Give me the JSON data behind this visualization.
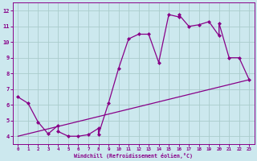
{
  "title": "",
  "xlabel": "Windchill (Refroidissement éolien,°C)",
  "xlim": [
    -0.5,
    23.5
  ],
  "ylim": [
    3.5,
    12.5
  ],
  "xticks": [
    0,
    1,
    2,
    3,
    4,
    5,
    6,
    7,
    8,
    9,
    10,
    11,
    12,
    13,
    14,
    15,
    16,
    17,
    18,
    19,
    20,
    21,
    22,
    23
  ],
  "yticks": [
    4,
    5,
    6,
    7,
    8,
    9,
    10,
    11,
    12
  ],
  "background_color": "#cce8ee",
  "line_color": "#880088",
  "grid_color": "#aacccc",
  "curve_x": [
    0,
    1,
    2,
    3,
    4,
    4,
    5,
    6,
    7,
    8,
    8,
    9,
    10,
    11,
    12,
    13,
    14,
    15,
    16,
    16,
    17,
    18,
    19,
    20,
    20,
    21,
    22,
    23
  ],
  "curve_y": [
    6.5,
    6.1,
    4.9,
    4.15,
    4.7,
    4.3,
    4.0,
    4.0,
    4.1,
    4.5,
    4.1,
    6.1,
    8.3,
    10.2,
    10.5,
    10.5,
    8.7,
    11.75,
    11.6,
    11.75,
    11.0,
    11.1,
    11.3,
    10.4,
    11.2,
    9.0,
    9.0,
    7.6
  ],
  "line_x": [
    0,
    23
  ],
  "line_y": [
    4.0,
    7.6
  ]
}
